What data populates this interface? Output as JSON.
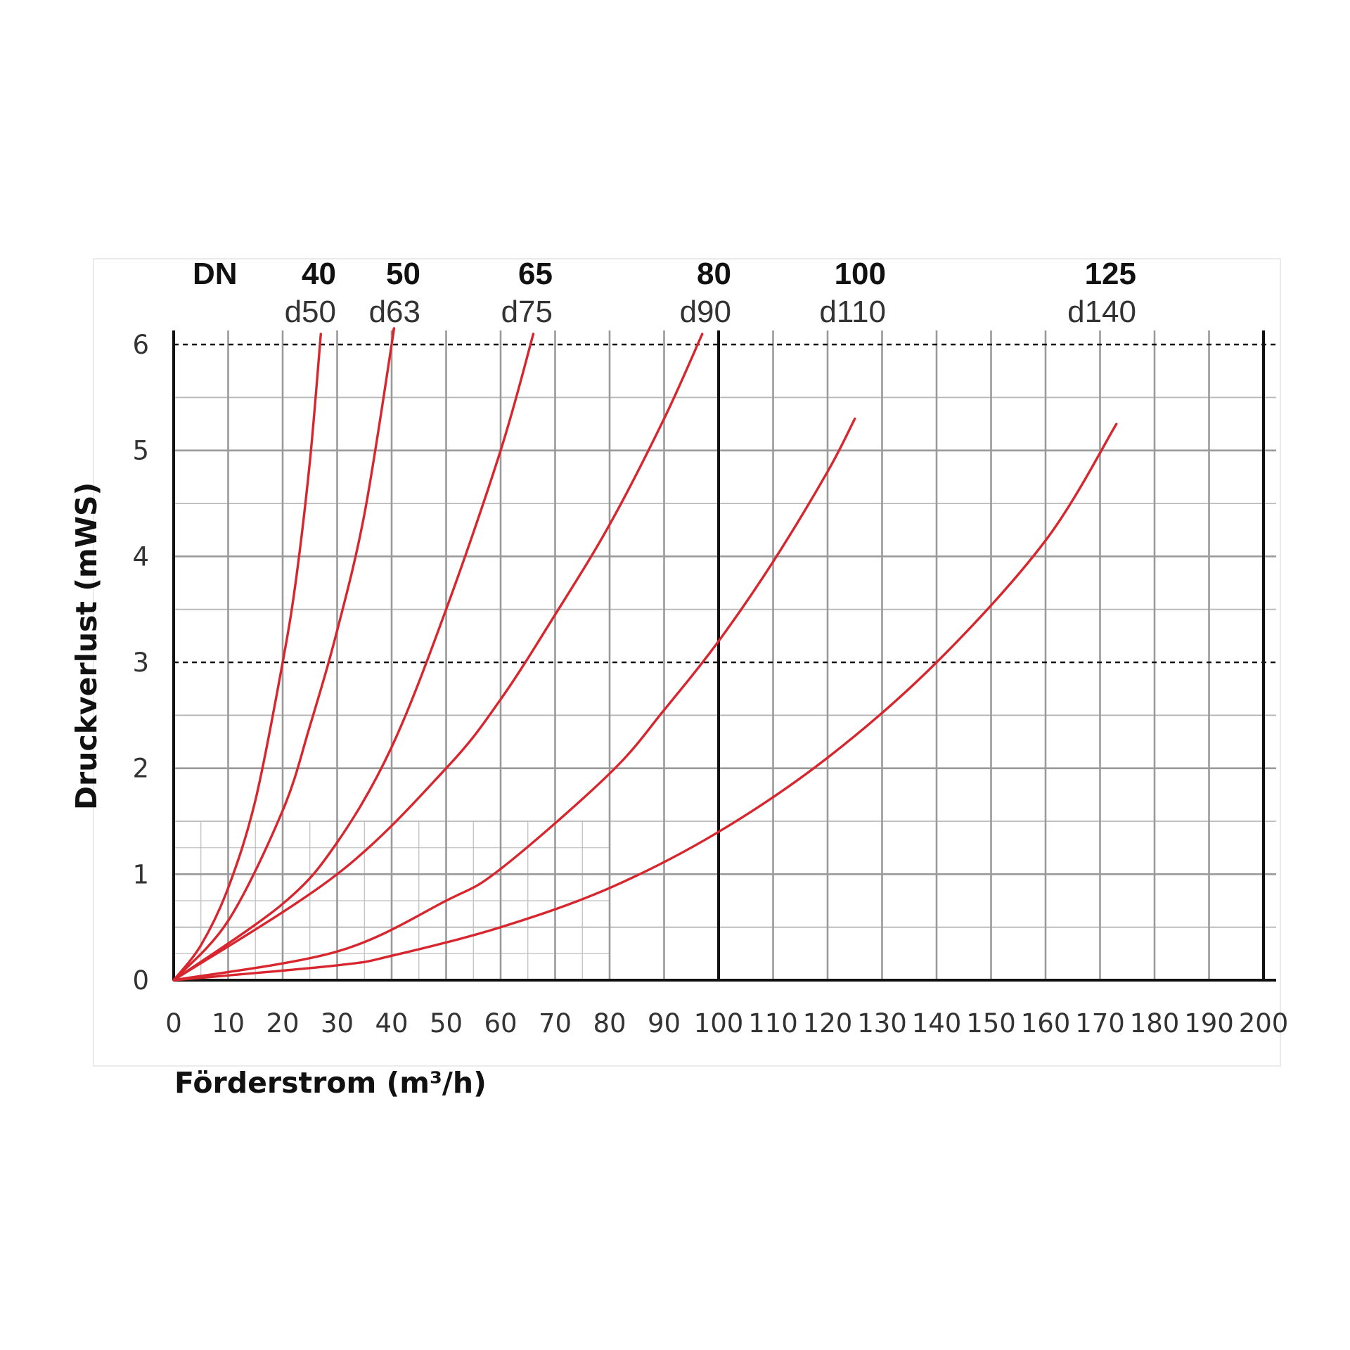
{
  "chart_data": {
    "type": "line",
    "title": "",
    "xlabel": "Förderstrom (m³/h)",
    "ylabel": "Druckverlust (mWS)",
    "xlim": [
      0,
      200
    ],
    "ylim": [
      0,
      6
    ],
    "x_ticks": [
      "0",
      "10",
      "20",
      "30",
      "40",
      "50",
      "60",
      "70",
      "80",
      "90",
      "100",
      "110",
      "120",
      "130",
      "140",
      "150",
      "160",
      "170",
      "180",
      "190",
      "200"
    ],
    "y_ticks": [
      "0",
      "1",
      "2",
      "3",
      "4",
      "5",
      "6"
    ],
    "grid": true,
    "reference_lines_y": [
      3,
      6
    ],
    "legend_placement": "top (inline labels above curves)",
    "line_color": "#d7262e",
    "header": {
      "prefix": "DN"
    },
    "series": [
      {
        "name": "40",
        "sub": "d50",
        "x": [
          0,
          5,
          10,
          15,
          20,
          22.5,
          25,
          27
        ],
        "y": [
          0,
          0.33,
          0.87,
          1.7,
          3.0,
          3.8,
          4.9,
          6.1
        ]
      },
      {
        "name": "50",
        "sub": "d63",
        "x": [
          0,
          10,
          20,
          25,
          30,
          35,
          40,
          40.2
        ],
        "y": [
          0,
          0.56,
          1.6,
          2.4,
          3.3,
          4.4,
          6.0,
          6.1
        ]
      },
      {
        "name": "65",
        "sub": "d75",
        "x": [
          0,
          20,
          30,
          40,
          50,
          60,
          66
        ],
        "y": [
          0,
          0.72,
          1.3,
          2.2,
          3.5,
          5.0,
          6.1
        ]
      },
      {
        "name": "80",
        "sub": "d90",
        "x": [
          0,
          30,
          50,
          60,
          70,
          80,
          90,
          97
        ],
        "y": [
          0,
          1.0,
          2.0,
          2.65,
          3.45,
          4.3,
          5.3,
          6.1
        ]
      },
      {
        "name": "100",
        "sub": "d110",
        "x": [
          0,
          30,
          50,
          60,
          80,
          90,
          100,
          110,
          120,
          125
        ],
        "y": [
          0,
          0.27,
          0.75,
          1.05,
          1.95,
          2.55,
          3.2,
          3.95,
          4.8,
          5.3
        ]
      },
      {
        "name": "125",
        "sub": "d140",
        "x": [
          0,
          30,
          40,
          60,
          80,
          100,
          120,
          140,
          160,
          173
        ],
        "y": [
          0,
          0.14,
          0.23,
          0.5,
          0.87,
          1.4,
          2.1,
          3.0,
          4.15,
          5.25
        ]
      }
    ]
  }
}
